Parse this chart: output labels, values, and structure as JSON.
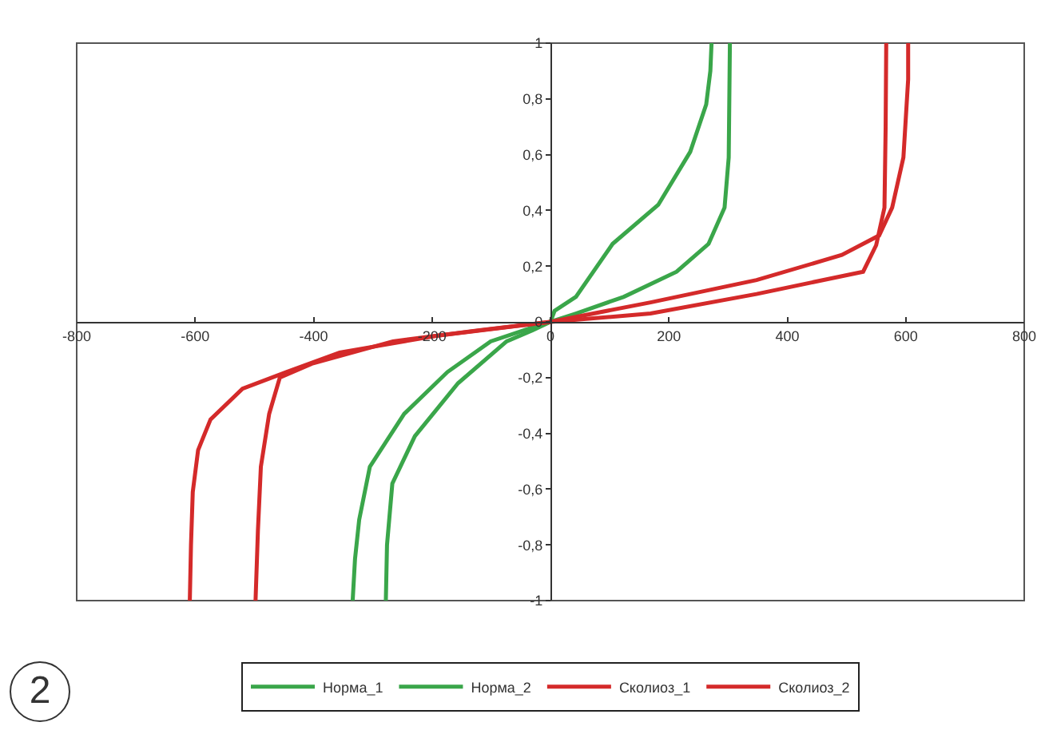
{
  "chart_data": {
    "type": "line",
    "annotations": [
      "2"
    ],
    "xlim": [
      -800,
      800
    ],
    "xticks": [
      -800,
      -600,
      -400,
      -200,
      0,
      200,
      400,
      600,
      800
    ],
    "ylim": [
      -1,
      1
    ],
    "yticks": [
      {
        "value": -1,
        "label": "-1"
      },
      {
        "value": -0.8,
        "label": "-0,8"
      },
      {
        "value": -0.6,
        "label": "-0,6"
      },
      {
        "value": -0.4,
        "label": "-0,4"
      },
      {
        "value": -0.2,
        "label": "-0,2"
      },
      0,
      {
        "value": 0.2,
        "label": "0,2"
      },
      {
        "value": 0.4,
        "label": "0,4"
      },
      {
        "value": 0.6,
        "label": "0,6"
      },
      {
        "value": 0.8,
        "label": "0,8"
      },
      1
    ],
    "grid": false,
    "legend": "bottom",
    "marker": "none",
    "line_style": "solid",
    "series": [
      {
        "name": "Норма_1",
        "color": "#3aa64a",
        "x": [
          -278,
          -276,
          -267,
          -229,
          -156,
          -74,
          -30,
          0,
          7,
          43,
          105,
          182,
          236,
          263,
          270,
          272
        ],
        "values": [
          -1,
          -0.8,
          -0.58,
          -0.41,
          -0.22,
          -0.07,
          -0.03,
          0,
          0.04,
          0.09,
          0.28,
          0.42,
          0.61,
          0.78,
          0.9,
          1
        ]
      },
      {
        "name": "Норма_2",
        "color": "#3aa64a",
        "x": [
          -334,
          -330,
          -323,
          -305,
          -247,
          -174,
          -101,
          -30,
          0,
          43,
          124,
          213,
          267,
          294,
          301,
          303
        ],
        "values": [
          -1,
          -0.85,
          -0.71,
          -0.52,
          -0.33,
          -0.18,
          -0.07,
          -0.02,
          0,
          0.03,
          0.09,
          0.18,
          0.28,
          0.41,
          0.59,
          1
        ]
      },
      {
        "name": "Сколиоз_1",
        "color": "#d42a2a",
        "x": [
          -609,
          -607,
          -604,
          -595,
          -574,
          -520,
          -446,
          -356,
          -193,
          0,
          169,
          348,
          492,
          555,
          577,
          596,
          604,
          604
        ],
        "values": [
          -1,
          -0.8,
          -0.61,
          -0.46,
          -0.35,
          -0.24,
          -0.18,
          -0.11,
          -0.05,
          0,
          0.07,
          0.15,
          0.24,
          0.31,
          0.41,
          0.59,
          0.87,
          1
        ]
      },
      {
        "name": "Сколиоз_2",
        "color": "#d42a2a",
        "x": [
          -498,
          -494,
          -489,
          -475,
          -457,
          -403,
          -266,
          -120,
          0,
          169,
          348,
          528,
          550,
          564,
          566,
          567
        ],
        "values": [
          -1,
          -0.75,
          -0.52,
          -0.33,
          -0.2,
          -0.15,
          -0.07,
          -0.03,
          0,
          0.03,
          0.1,
          0.18,
          0.275,
          0.41,
          0.7,
          1
        ]
      }
    ]
  }
}
